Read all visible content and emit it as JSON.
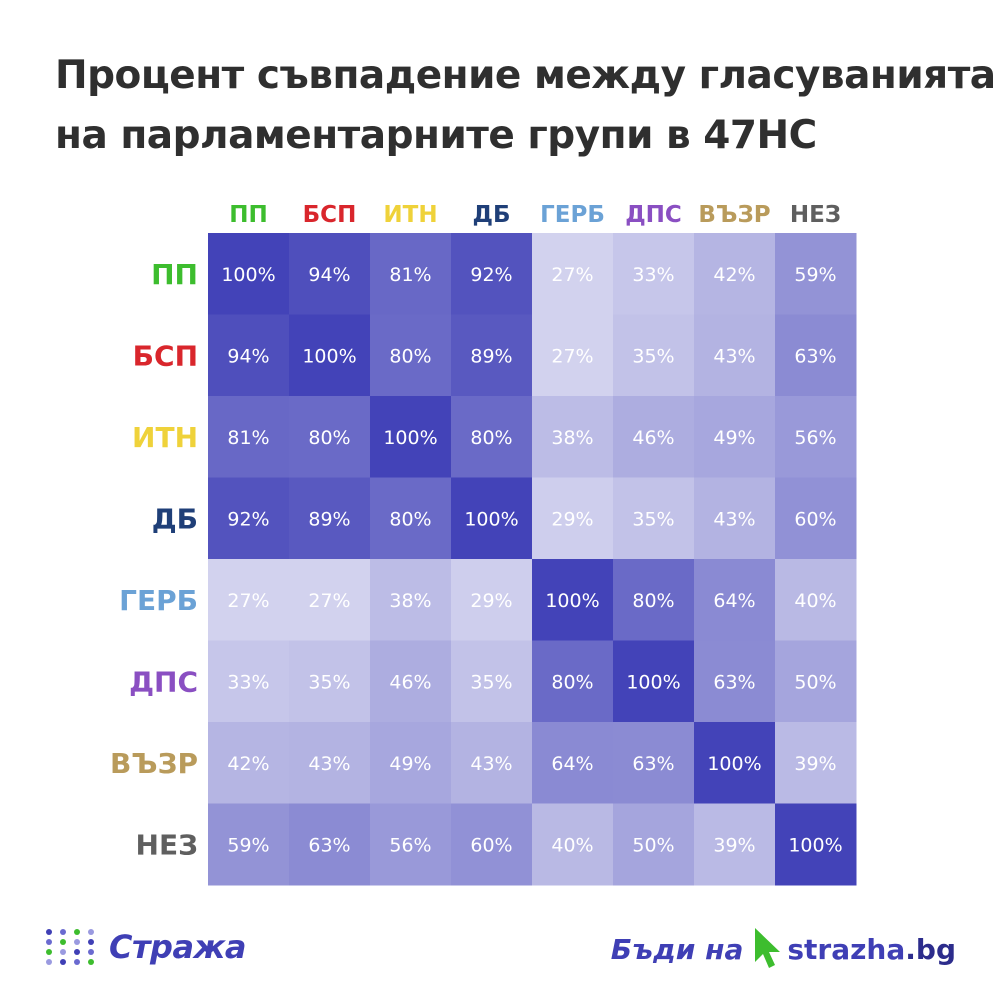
{
  "title_lines": [
    "Процент съвпадение между гласуванията",
    "на парламентарните групи в 47НС"
  ],
  "chart_data": {
    "type": "heatmap",
    "title": "Процент съвпадение между гласуванията на парламентарните групи в 47НС",
    "categories": [
      "ПП",
      "БСП",
      "ИТН",
      "ДБ",
      "ГЕРБ",
      "ДПС",
      "ВЪЗР",
      "НЕЗ"
    ],
    "category_colors": [
      "#3dbd2e",
      "#d9262c",
      "#efd23a",
      "#1f3f78",
      "#6ba2d6",
      "#8a4fc2",
      "#b99b5b",
      "#5f5f5f"
    ],
    "value_unit": "%",
    "value_range": [
      27,
      100
    ],
    "color_scale": [
      "#d2d2ee",
      "#4343b8"
    ],
    "values": [
      [
        100,
        94,
        81,
        92,
        27,
        33,
        42,
        59
      ],
      [
        94,
        100,
        80,
        89,
        27,
        35,
        43,
        63
      ],
      [
        81,
        80,
        100,
        80,
        38,
        46,
        49,
        56
      ],
      [
        92,
        89,
        80,
        100,
        29,
        35,
        43,
        60
      ],
      [
        27,
        27,
        38,
        29,
        100,
        80,
        64,
        40
      ],
      [
        33,
        35,
        46,
        35,
        80,
        100,
        63,
        50
      ],
      [
        42,
        43,
        49,
        43,
        64,
        63,
        100,
        39
      ],
      [
        59,
        63,
        56,
        60,
        40,
        50,
        39,
        100
      ]
    ],
    "xlabel": "",
    "ylabel": "",
    "legend": "none"
  },
  "footer": {
    "logo_text": "Стража",
    "logo_dot_colors": [
      "#3f3fb5",
      "#6a6ad0",
      "#3dbd2e",
      "#9a9ae0"
    ],
    "slogan": "Бъди на",
    "site": "strazha",
    "site_tld": ".bg",
    "cursor_color": "#3dbd2e"
  }
}
